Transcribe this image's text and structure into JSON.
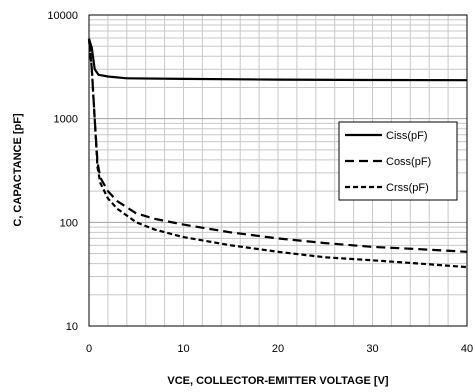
{
  "chart_data": {
    "type": "line",
    "xlabel": "VCE, COLLECTOR-EMITTER  VOLTAGE [V]",
    "ylabel": "C, CAPACTANCE [pF]",
    "xlim": [
      0,
      40
    ],
    "ylim": [
      10,
      10000
    ],
    "yscale": "log",
    "x_ticks": [
      "0",
      "10",
      "20",
      "30",
      "40"
    ],
    "y_ticks": [
      "10",
      "100",
      "1000",
      "10000"
    ],
    "grid": true,
    "legend_position": "right",
    "series": [
      {
        "name": "Ciss(pF)",
        "style": "solid",
        "color": "#000000",
        "x": [
          0,
          0.3,
          0.6,
          1,
          2,
          4,
          10,
          20,
          30,
          40
        ],
        "y": [
          5900,
          4800,
          3000,
          2650,
          2550,
          2450,
          2420,
          2380,
          2360,
          2350
        ]
      },
      {
        "name": "Coss(pF)",
        "style": "dashed",
        "color": "#000000",
        "x": [
          0,
          0.3,
          0.6,
          0.9,
          1.2,
          2,
          3,
          5,
          7,
          10,
          15,
          20,
          25,
          30,
          35,
          40
        ],
        "y": [
          5900,
          3000,
          1000,
          380,
          270,
          200,
          160,
          122,
          108,
          95,
          80,
          70,
          63,
          58,
          55,
          52
        ]
      },
      {
        "name": "Crss(pF)",
        "style": "short-dashed",
        "color": "#000000",
        "x": [
          0,
          0.3,
          0.6,
          0.9,
          1.2,
          2,
          3,
          5,
          7,
          10,
          15,
          20,
          25,
          30,
          35,
          40
        ],
        "y": [
          5900,
          3000,
          1000,
          340,
          240,
          170,
          135,
          100,
          85,
          72,
          60,
          52,
          46,
          43,
          40,
          37
        ]
      }
    ]
  }
}
